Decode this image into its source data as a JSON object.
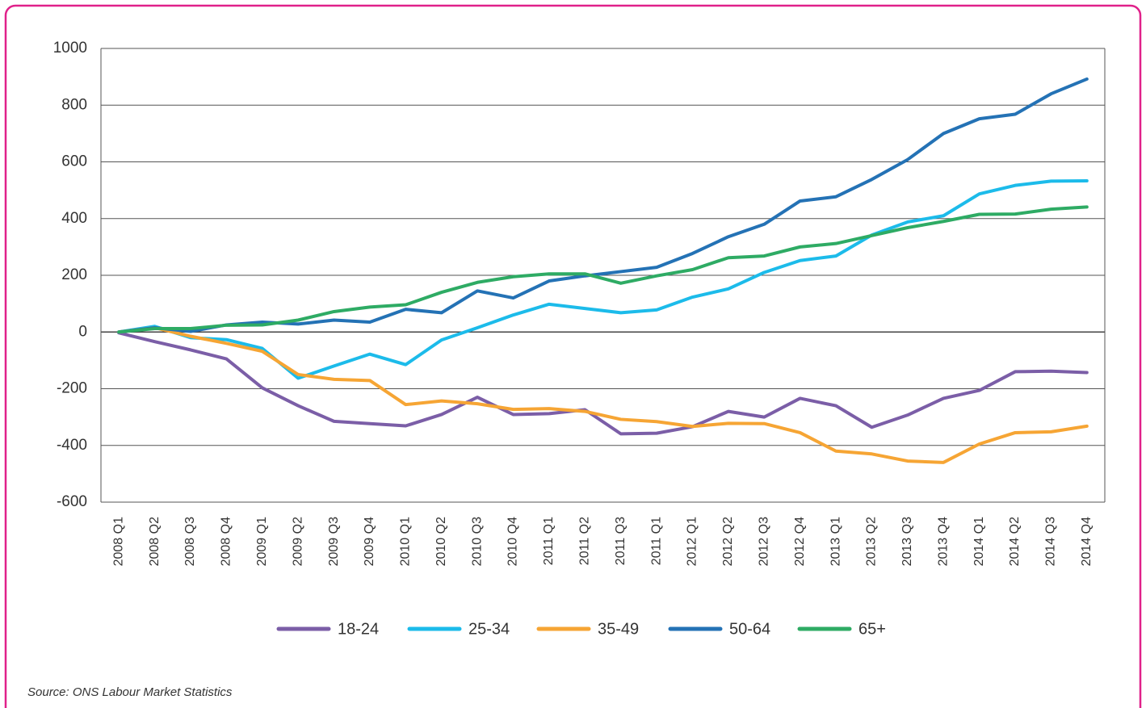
{
  "chart_data": {
    "type": "line",
    "categories": [
      "2008 Q1",
      "2008 Q2",
      "2008 Q3",
      "2008 Q4",
      "2009 Q1",
      "2009 Q2",
      "2009 Q3",
      "2009 Q4",
      "2010 Q1",
      "2010 Q2",
      "2010 Q3",
      "2010 Q4",
      "2011 Q1",
      "2011 Q2",
      "2011 Q3",
      "2011 Q1",
      "2012 Q1",
      "2012 Q2",
      "2012 Q3",
      "2012 Q4",
      "2013 Q1",
      "2013 Q2",
      "2013 Q3",
      "2013 Q4",
      "2014 Q1",
      "2014 Q2",
      "2014 Q3",
      "2014 Q4"
    ],
    "series": [
      {
        "name": "18-24",
        "color": "#7b5ea7",
        "values": [
          -3,
          -34,
          -63,
          -95,
          -197,
          -260,
          -315,
          -323,
          -331,
          -291,
          -230,
          -291,
          -288,
          -274,
          -359,
          -357,
          -334,
          -280,
          -300,
          -234,
          -260,
          -336,
          -293,
          -234,
          -206,
          -140,
          -138,
          -143
        ]
      },
      {
        "name": "25-34",
        "color": "#1cbbea",
        "values": [
          0,
          20,
          -20,
          -27,
          -58,
          -163,
          -120,
          -78,
          -115,
          -28,
          15,
          60,
          98,
          83,
          68,
          78,
          123,
          152,
          210,
          252,
          268,
          342,
          388,
          410,
          487,
          517,
          532,
          533
        ]
      },
      {
        "name": "35-49",
        "color": "#f6a534",
        "values": [
          0,
          15,
          -15,
          -40,
          -68,
          -150,
          -167,
          -171,
          -256,
          -243,
          -253,
          -273,
          -270,
          -280,
          -308,
          -316,
          -333,
          -322,
          -323,
          -355,
          -420,
          -430,
          -455,
          -460,
          -395,
          -355,
          -352,
          -332
        ]
      },
      {
        "name": "50-64",
        "color": "#2472b5",
        "values": [
          0,
          15,
          2,
          25,
          35,
          28,
          42,
          35,
          80,
          68,
          145,
          120,
          180,
          198,
          213,
          228,
          277,
          336,
          380,
          462,
          477,
          538,
          608,
          700,
          752,
          768,
          840,
          892
        ]
      },
      {
        "name": "65+",
        "color": "#2eab64",
        "values": [
          0,
          12,
          12,
          24,
          25,
          42,
          72,
          88,
          96,
          140,
          175,
          195,
          205,
          205,
          172,
          198,
          220,
          262,
          268,
          300,
          312,
          340,
          368,
          390,
          415,
          416,
          433,
          441
        ]
      }
    ],
    "ylim": [
      -600,
      1000
    ],
    "yticks": [
      -600,
      -400,
      -200,
      0,
      200,
      400,
      600,
      800,
      1000
    ],
    "grid": true,
    "source": "Source: ONS Labour Market Statistics"
  }
}
